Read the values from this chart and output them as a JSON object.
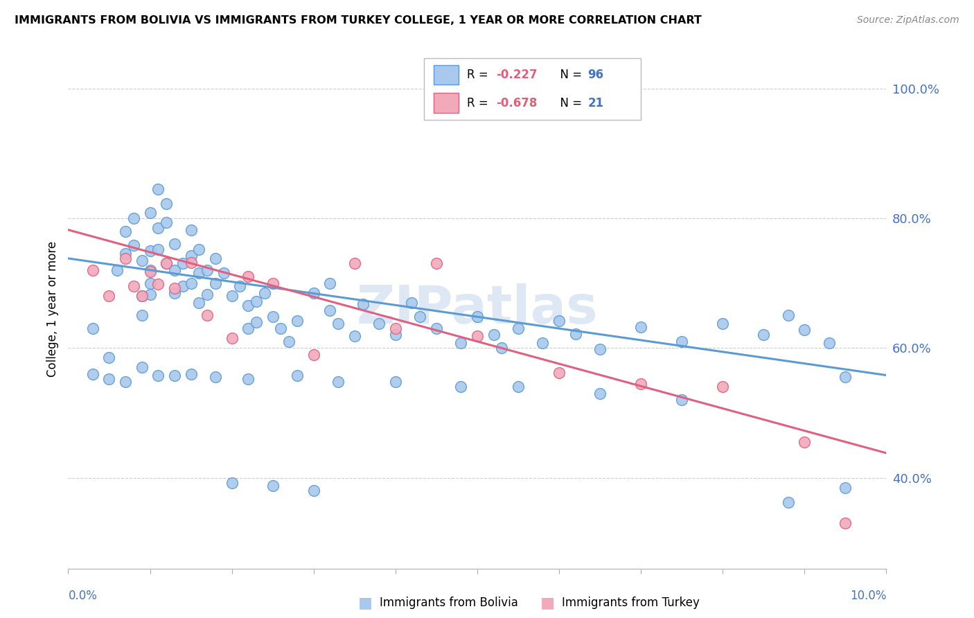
{
  "title": "IMMIGRANTS FROM BOLIVIA VS IMMIGRANTS FROM TURKEY COLLEGE, 1 YEAR OR MORE CORRELATION CHART",
  "source": "Source: ZipAtlas.com",
  "ylabel": "College, 1 year or more",
  "xlim": [
    0.0,
    0.1
  ],
  "ylim": [
    0.26,
    1.06
  ],
  "y_tick_values": [
    0.4,
    0.6,
    0.8,
    1.0
  ],
  "y_tick_labels": [
    "40.0%",
    "60.0%",
    "80.0%",
    "100.0%"
  ],
  "bolivia_color": "#A8C8ED",
  "bolivia_edge_color": "#5B9BD5",
  "turkey_color": "#F2AABB",
  "turkey_edge_color": "#E06080",
  "blue_text_color": "#4472C4",
  "watermark_text": "ZIPatlas",
  "bolivia_x": [
    0.003,
    0.005,
    0.006,
    0.007,
    0.007,
    0.008,
    0.008,
    0.009,
    0.009,
    0.009,
    0.01,
    0.01,
    0.01,
    0.01,
    0.01,
    0.011,
    0.011,
    0.011,
    0.012,
    0.012,
    0.012,
    0.013,
    0.013,
    0.013,
    0.014,
    0.014,
    0.015,
    0.015,
    0.015,
    0.016,
    0.016,
    0.016,
    0.017,
    0.017,
    0.018,
    0.018,
    0.019,
    0.02,
    0.021,
    0.022,
    0.022,
    0.023,
    0.023,
    0.024,
    0.025,
    0.026,
    0.027,
    0.028,
    0.03,
    0.032,
    0.032,
    0.033,
    0.035,
    0.036,
    0.038,
    0.04,
    0.042,
    0.043,
    0.045,
    0.048,
    0.05,
    0.052,
    0.053,
    0.055,
    0.058,
    0.06,
    0.062,
    0.065,
    0.07,
    0.075,
    0.08,
    0.085,
    0.088,
    0.09,
    0.093,
    0.095,
    0.003,
    0.005,
    0.007,
    0.009,
    0.011,
    0.013,
    0.015,
    0.018,
    0.022,
    0.028,
    0.033,
    0.04,
    0.048,
    0.055,
    0.065,
    0.075,
    0.088,
    0.095,
    0.02,
    0.025,
    0.03
  ],
  "bolivia_y": [
    0.63,
    0.585,
    0.72,
    0.78,
    0.745,
    0.8,
    0.758,
    0.68,
    0.65,
    0.735,
    0.7,
    0.808,
    0.75,
    0.72,
    0.682,
    0.845,
    0.785,
    0.752,
    0.822,
    0.793,
    0.73,
    0.76,
    0.72,
    0.685,
    0.73,
    0.695,
    0.782,
    0.742,
    0.7,
    0.752,
    0.715,
    0.67,
    0.72,
    0.682,
    0.738,
    0.7,
    0.715,
    0.68,
    0.695,
    0.665,
    0.63,
    0.672,
    0.64,
    0.685,
    0.648,
    0.63,
    0.61,
    0.642,
    0.685,
    0.7,
    0.658,
    0.638,
    0.618,
    0.668,
    0.638,
    0.62,
    0.67,
    0.648,
    0.63,
    0.608,
    0.648,
    0.62,
    0.6,
    0.63,
    0.608,
    0.642,
    0.622,
    0.598,
    0.632,
    0.61,
    0.638,
    0.62,
    0.65,
    0.628,
    0.608,
    0.555,
    0.56,
    0.552,
    0.548,
    0.57,
    0.558,
    0.558,
    0.56,
    0.555,
    0.552,
    0.558,
    0.548,
    0.548,
    0.54,
    0.54,
    0.53,
    0.52,
    0.362,
    0.385,
    0.392,
    0.388,
    0.38
  ],
  "turkey_x": [
    0.003,
    0.005,
    0.007,
    0.008,
    0.009,
    0.01,
    0.011,
    0.012,
    0.013,
    0.015,
    0.017,
    0.02,
    0.022,
    0.025,
    0.03,
    0.035,
    0.04,
    0.045,
    0.05,
    0.06,
    0.07,
    0.08,
    0.09,
    0.095
  ],
  "turkey_y": [
    0.72,
    0.68,
    0.738,
    0.695,
    0.68,
    0.718,
    0.698,
    0.73,
    0.692,
    0.732,
    0.65,
    0.615,
    0.71,
    0.7,
    0.59,
    0.73,
    0.63,
    0.73,
    0.618,
    0.562,
    0.545,
    0.54,
    0.455,
    0.33
  ],
  "bolivia_trend_x": [
    0.0,
    0.1
  ],
  "bolivia_trend_y": [
    0.738,
    0.558
  ],
  "turkey_trend_x": [
    0.0,
    0.1
  ],
  "turkey_trend_y": [
    0.782,
    0.438
  ],
  "legend_R_bolivia": "-0.227",
  "legend_N_bolivia": "96",
  "legend_R_turkey": "-0.678",
  "legend_N_turkey": "21"
}
